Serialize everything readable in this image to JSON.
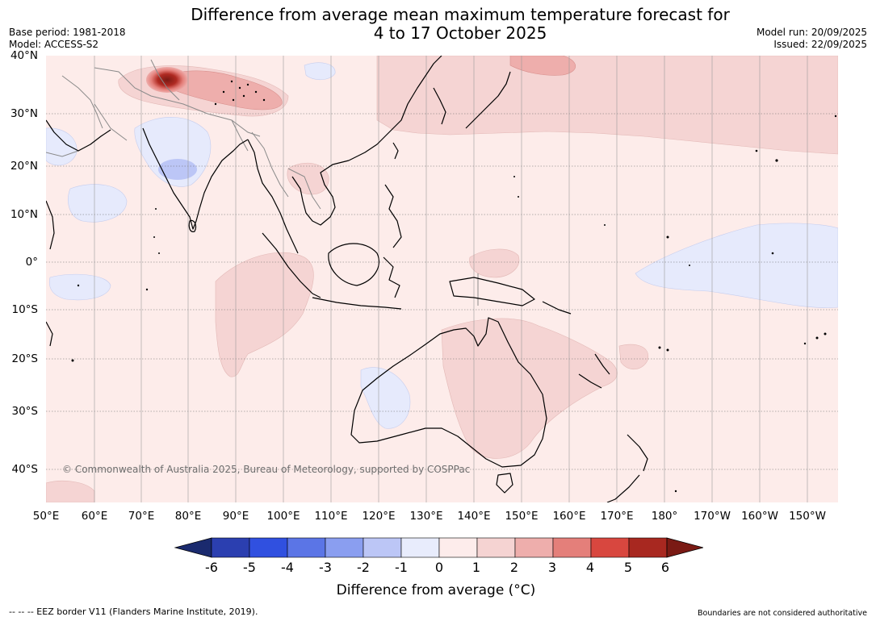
{
  "title": {
    "line1": "Difference from average mean maximum temperature forecast for",
    "line2": "4 to 17 October 2025"
  },
  "meta": {
    "base_period": "Base period: 1981-2018",
    "model": "Model: ACCESS-S2",
    "model_run": "Model run: 20/09/2025",
    "issued": "Issued: 22/09/2025"
  },
  "axes": {
    "lat_labels": [
      "40°N",
      "30°N",
      "20°N",
      "10°N",
      "0°",
      "10°S",
      "20°S",
      "30°S",
      "40°S"
    ],
    "lon_labels": [
      "50°E",
      "60°E",
      "70°E",
      "80°E",
      "90°E",
      "100°E",
      "110°E",
      "120°E",
      "130°E",
      "140°E",
      "150°E",
      "160°E",
      "170°E",
      "180°",
      "170°W",
      "160°W",
      "150°W"
    ]
  },
  "copyright": "© Commonwealth of Australia 2025, Bureau of Meteorology, supported by COSPPac",
  "colorbar": {
    "ticks": [
      "-6",
      "-5",
      "-4",
      "-3",
      "-2",
      "-1",
      "0",
      "1",
      "2",
      "3",
      "4",
      "5",
      "6"
    ],
    "colors": [
      "#1a2a6e",
      "#2b3fb0",
      "#3050e0",
      "#5b75e6",
      "#8a9ef0",
      "#bcc6f6",
      "#e8ecfc",
      "#fdeceb",
      "#f5d3d2",
      "#eeaeac",
      "#e47f7a",
      "#d8473f",
      "#a82820",
      "#7a1a14"
    ],
    "title": "Difference from average (°C)"
  },
  "map_colors": {
    "base": "#fdecea",
    "light_red": "#f5d4d3",
    "mid_red": "#eeaeac",
    "dark_red": "#c8443b",
    "light_blue": "#e6eafc",
    "mid_blue": "#bcc6f6",
    "coast": "#000000",
    "border": "#8a8a8a",
    "grid": "#555555"
  },
  "footer": {
    "left": "--  --  -- EEZ border V11 (Flanders Marine Institute, 2019).",
    "right": "Boundaries are not considered authoritative"
  }
}
